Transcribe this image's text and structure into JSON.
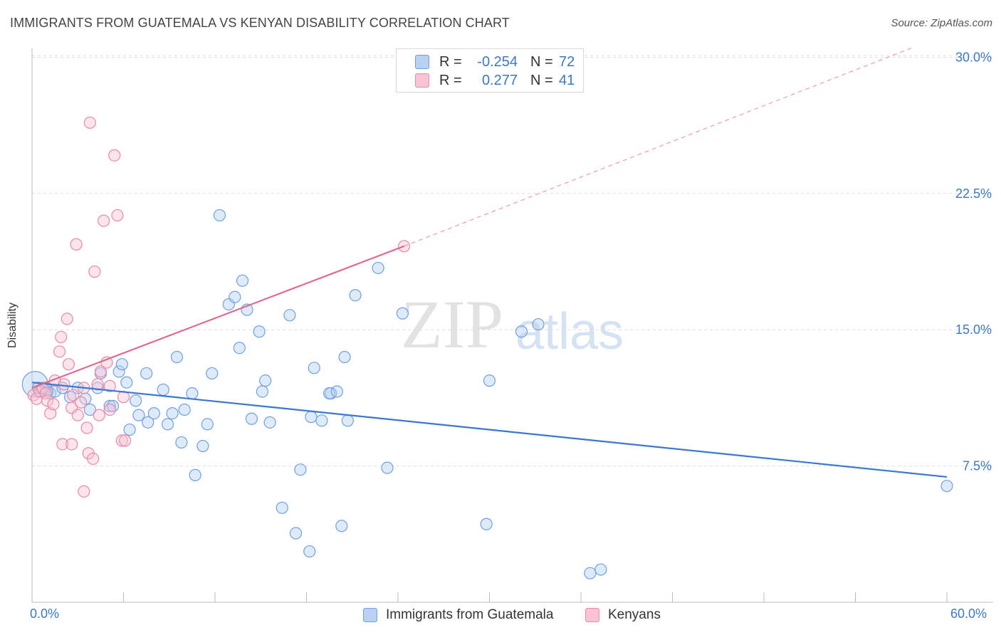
{
  "title": "IMMIGRANTS FROM GUATEMALA VS KENYAN DISABILITY CORRELATION CHART",
  "source": "Source: ZipAtlas.com",
  "watermark": {
    "zip": "ZIP",
    "atlas": "atlas"
  },
  "legend": {
    "rows": [
      {
        "r_label": "R =",
        "r_value": "-0.254",
        "n_label": "N =",
        "n_value": "72",
        "color": "#6fa1e0",
        "fill": "#b9d0f2"
      },
      {
        "r_label": "R =",
        "r_value": "0.277",
        "n_label": "N =",
        "n_value": "41",
        "color": "#e88aa6",
        "fill": "#f8c4d3"
      }
    ]
  },
  "bottom_legend": [
    {
      "label": "Immigrants from Guatemala",
      "color": "#6fa1e0",
      "fill": "#b9d0f2"
    },
    {
      "label": "Kenyans",
      "color": "#e88aa6",
      "fill": "#f8c4d3"
    }
  ],
  "chart_data": {
    "type": "scatter",
    "title": "IMMIGRANTS FROM GUATEMALA VS KENYAN DISABILITY CORRELATION CHART",
    "xlabel": "",
    "ylabel": "Disability",
    "xlim": [
      0,
      60
    ],
    "ylim": [
      0,
      30
    ],
    "x_tick_labels": [
      "0.0%",
      "60.0%"
    ],
    "y_ticks": [
      7.5,
      15.0,
      22.5,
      30.0
    ],
    "y_tick_labels": [
      "7.5%",
      "15.0%",
      "22.5%",
      "30.0%"
    ],
    "grid": "horizontal dashed",
    "series": [
      {
        "name": "Immigrants from Guatemala",
        "color": "#3a78d0",
        "trend": {
          "x": [
            0,
            60
          ],
          "y": [
            12.1,
            6.9
          ]
        },
        "points": [
          [
            0.2,
            12.0,
            18
          ],
          [
            0.4,
            11.8,
            8
          ],
          [
            0.6,
            11.6,
            8
          ],
          [
            0.9,
            11.8,
            8
          ],
          [
            1.2,
            11.5,
            8
          ],
          [
            1.5,
            11.6,
            8
          ],
          [
            2.0,
            11.8,
            8
          ],
          [
            2.5,
            11.3,
            8
          ],
          [
            3.0,
            11.8,
            8
          ],
          [
            3.5,
            11.2,
            8
          ],
          [
            3.8,
            10.6,
            8
          ],
          [
            4.3,
            11.8,
            8
          ],
          [
            4.5,
            12.6,
            8
          ],
          [
            5.1,
            10.8,
            8
          ],
          [
            5.3,
            10.8,
            8
          ],
          [
            5.7,
            12.7,
            8
          ],
          [
            5.9,
            13.1,
            8
          ],
          [
            6.2,
            12.1,
            8
          ],
          [
            6.4,
            9.5,
            8
          ],
          [
            6.8,
            11.1,
            8
          ],
          [
            7.0,
            10.3,
            8
          ],
          [
            7.6,
            9.9,
            8
          ],
          [
            7.5,
            12.6,
            8
          ],
          [
            8.0,
            10.4,
            8
          ],
          [
            8.6,
            11.7,
            8
          ],
          [
            8.9,
            9.8,
            8
          ],
          [
            9.2,
            10.4,
            8
          ],
          [
            9.5,
            13.5,
            8
          ],
          [
            9.8,
            8.8,
            8
          ],
          [
            10.0,
            10.6,
            8
          ],
          [
            10.5,
            11.5,
            8
          ],
          [
            10.7,
            7.0,
            8
          ],
          [
            11.2,
            8.6,
            8
          ],
          [
            11.5,
            9.8,
            8
          ],
          [
            11.8,
            12.6,
            8
          ],
          [
            12.3,
            21.3,
            8
          ],
          [
            12.9,
            16.4,
            8
          ],
          [
            13.3,
            16.8,
            8
          ],
          [
            13.6,
            14.0,
            8
          ],
          [
            13.8,
            17.7,
            8
          ],
          [
            14.1,
            16.1,
            8
          ],
          [
            14.4,
            10.1,
            8
          ],
          [
            14.9,
            14.9,
            8
          ],
          [
            15.1,
            11.6,
            8
          ],
          [
            15.3,
            12.2,
            8
          ],
          [
            15.6,
            9.9,
            8
          ],
          [
            16.4,
            5.2,
            8
          ],
          [
            16.9,
            15.8,
            8
          ],
          [
            17.3,
            3.8,
            8
          ],
          [
            17.6,
            7.3,
            8
          ],
          [
            18.3,
            10.2,
            8
          ],
          [
            18.5,
            12.9,
            8
          ],
          [
            18.2,
            2.8,
            8
          ],
          [
            19.0,
            10.0,
            8
          ],
          [
            19.6,
            11.5,
            8
          ],
          [
            19.5,
            11.5,
            8
          ],
          [
            20.0,
            11.6,
            8
          ],
          [
            20.3,
            4.2,
            8
          ],
          [
            20.5,
            13.5,
            8
          ],
          [
            20.7,
            10.0,
            8
          ],
          [
            21.2,
            16.9,
            8
          ],
          [
            22.7,
            18.4,
            8
          ],
          [
            23.3,
            7.4,
            8
          ],
          [
            24.3,
            15.9,
            8
          ],
          [
            29.8,
            4.3,
            8
          ],
          [
            30.0,
            12.2,
            8
          ],
          [
            32.1,
            14.9,
            8
          ],
          [
            33.2,
            15.3,
            8
          ],
          [
            36.6,
            1.6,
            8
          ],
          [
            37.3,
            1.8,
            8
          ],
          [
            60.0,
            6.4,
            8
          ],
          [
            1.0,
            11.6,
            8
          ]
        ]
      },
      {
        "name": "Kenyans",
        "color": "#e0688e",
        "trend": {
          "x": [
            0,
            24.4
          ],
          "y": [
            11.8,
            19.6
          ]
        },
        "trend_dashed": {
          "x": [
            24.4,
            60
          ],
          "y": [
            19.6,
            30.7
          ]
        },
        "points": [
          [
            0.1,
            11.4,
            8
          ],
          [
            0.3,
            11.2,
            8
          ],
          [
            0.5,
            11.6,
            8
          ],
          [
            0.7,
            11.8,
            8
          ],
          [
            0.9,
            11.5,
            8
          ],
          [
            1.0,
            11.1,
            8
          ],
          [
            1.2,
            10.4,
            8
          ],
          [
            1.4,
            10.9,
            8
          ],
          [
            1.5,
            12.2,
            8
          ],
          [
            1.8,
            13.8,
            8
          ],
          [
            1.9,
            14.6,
            8
          ],
          [
            2.0,
            8.7,
            8
          ],
          [
            2.1,
            12.0,
            8
          ],
          [
            2.3,
            15.6,
            8
          ],
          [
            2.4,
            13.1,
            8
          ],
          [
            2.6,
            10.7,
            8
          ],
          [
            2.6,
            8.7,
            8
          ],
          [
            2.7,
            11.4,
            8
          ],
          [
            2.9,
            19.7,
            8
          ],
          [
            3.0,
            10.3,
            8
          ],
          [
            3.2,
            11.0,
            8
          ],
          [
            3.4,
            6.1,
            8
          ],
          [
            3.6,
            9.6,
            8
          ],
          [
            3.7,
            8.2,
            8
          ],
          [
            3.4,
            11.8,
            8
          ],
          [
            4.0,
            7.9,
            8
          ],
          [
            4.1,
            18.2,
            8
          ],
          [
            3.8,
            26.4,
            8
          ],
          [
            4.3,
            12.0,
            8
          ],
          [
            4.4,
            10.3,
            8
          ],
          [
            4.5,
            12.7,
            8
          ],
          [
            4.7,
            21.0,
            8
          ],
          [
            4.9,
            13.2,
            8
          ],
          [
            5.1,
            10.6,
            8
          ],
          [
            5.1,
            11.9,
            8
          ],
          [
            5.4,
            24.6,
            8
          ],
          [
            5.6,
            21.3,
            8
          ],
          [
            5.9,
            8.9,
            8
          ],
          [
            6.0,
            11.3,
            8
          ],
          [
            6.1,
            8.9,
            8
          ],
          [
            24.4,
            19.6,
            8
          ]
        ]
      }
    ]
  }
}
